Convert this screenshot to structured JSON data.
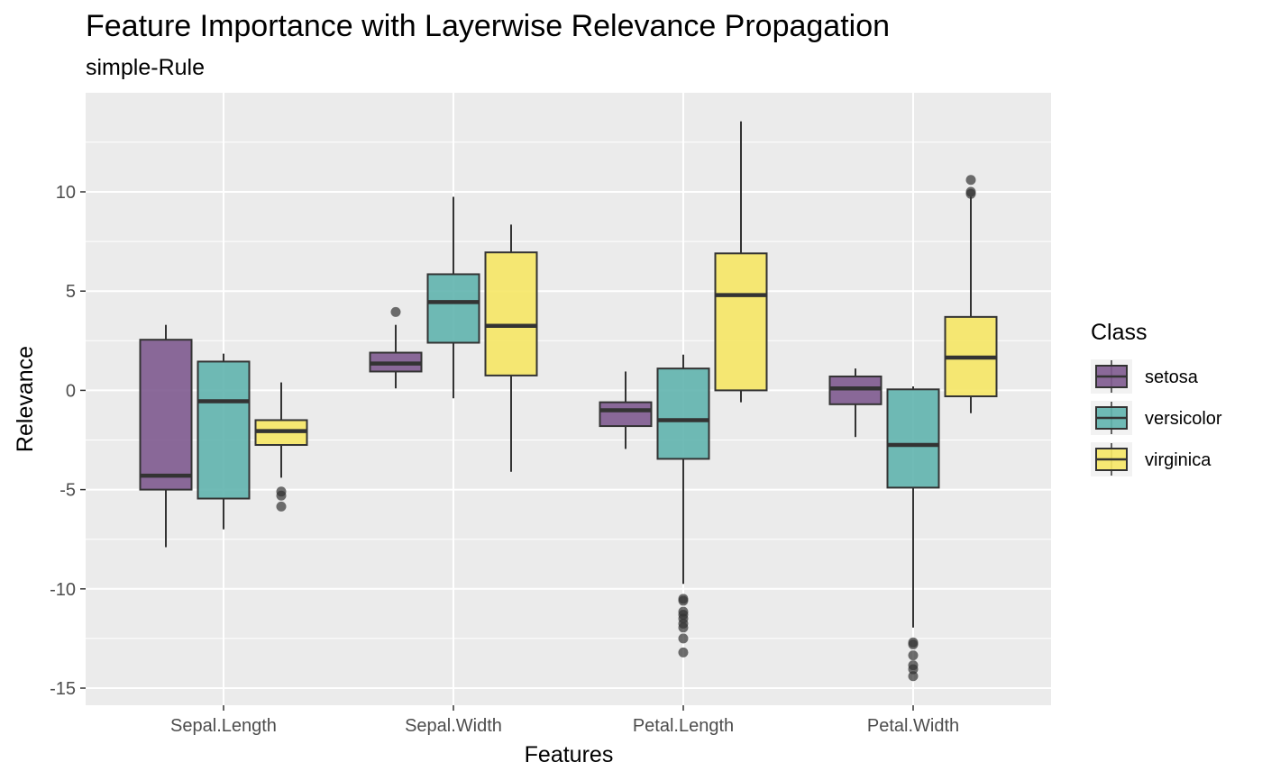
{
  "chart_data": {
    "type": "boxplot",
    "title": "Feature Importance with Layerwise Relevance Propagation",
    "subtitle": "simple-Rule",
    "xlabel": "Features",
    "ylabel": "Relevance",
    "categories": [
      "Sepal.Length",
      "Sepal.Width",
      "Petal.Length",
      "Petal.Width"
    ],
    "ylim": [
      -15.5,
      15
    ],
    "y_ticks": [
      -15,
      -10,
      -5,
      0,
      5,
      10
    ],
    "y_tick_labels": [
      "-15",
      "-10",
      "-5",
      "0",
      "5",
      "10"
    ],
    "grid": true,
    "legend": {
      "title": "Class",
      "position": "right"
    },
    "series": [
      {
        "name": "setosa",
        "color": "#7E5A8F",
        "boxes": [
          {
            "min": -7.9,
            "q1": -5.0,
            "median": -4.3,
            "q3": 2.55,
            "max": 3.3,
            "outliers": []
          },
          {
            "min": 0.1,
            "q1": 0.95,
            "median": 1.35,
            "q3": 1.9,
            "max": 3.3,
            "outliers": [
              3.95
            ]
          },
          {
            "min": -2.95,
            "q1": -1.8,
            "median": -1.0,
            "q3": -0.6,
            "max": 0.95,
            "outliers": []
          },
          {
            "min": -2.35,
            "q1": -0.7,
            "median": 0.1,
            "q3": 0.7,
            "max": 1.1,
            "outliers": []
          }
        ]
      },
      {
        "name": "versicolor",
        "color": "#61B4AE",
        "boxes": [
          {
            "min": -7.0,
            "q1": -5.45,
            "median": -0.55,
            "q3": 1.45,
            "max": 1.85,
            "outliers": []
          },
          {
            "min": -0.4,
            "q1": 2.4,
            "median": 4.45,
            "q3": 5.85,
            "max": 9.75,
            "outliers": []
          },
          {
            "min": -9.75,
            "q1": -3.45,
            "median": -1.5,
            "q3": 1.1,
            "max": 1.8,
            "outliers": [
              -10.5,
              -10.6,
              -11.15,
              -11.3,
              -11.5,
              -11.75,
              -11.95,
              -12.5,
              -13.2
            ]
          },
          {
            "min": -11.95,
            "q1": -4.9,
            "median": -2.75,
            "q3": 0.05,
            "max": 0.2,
            "outliers": [
              -12.7,
              -12.8,
              -13.35,
              -13.85,
              -14.05,
              -14.4
            ]
          }
        ]
      },
      {
        "name": "virginica",
        "color": "#F6E765",
        "boxes": [
          {
            "min": -4.4,
            "q1": -2.75,
            "median": -2.05,
            "q3": -1.5,
            "max": 0.4,
            "outliers": [
              -5.1,
              -5.3,
              -5.85
            ]
          },
          {
            "min": -4.1,
            "q1": 0.75,
            "median": 3.25,
            "q3": 6.95,
            "max": 8.35,
            "outliers": []
          },
          {
            "min": -0.6,
            "q1": 0.0,
            "median": 4.8,
            "q3": 6.9,
            "max": 13.55,
            "outliers": []
          },
          {
            "min": -1.15,
            "q1": -0.3,
            "median": 1.65,
            "q3": 3.7,
            "max": 9.75,
            "outliers": [
              9.9,
              10.0,
              10.6
            ]
          }
        ]
      }
    ]
  }
}
